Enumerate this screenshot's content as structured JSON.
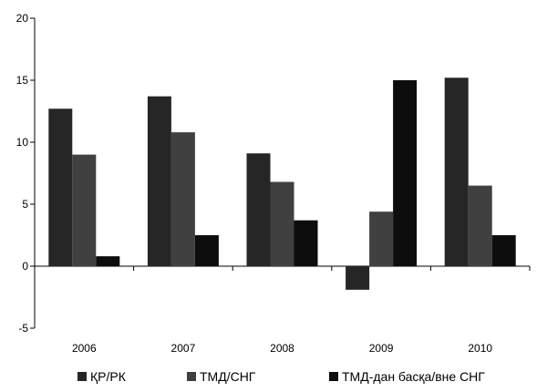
{
  "chart_data": {
    "type": "bar",
    "categories": [
      "2006",
      "2007",
      "2008",
      "2009",
      "2010"
    ],
    "series": [
      {
        "name": "ҚР/РК",
        "color": "#262626",
        "values": [
          12.7,
          13.7,
          9.1,
          -1.9,
          15.2
        ]
      },
      {
        "name": "ТМД/СНГ",
        "color": "#404040",
        "values": [
          9.0,
          10.8,
          6.8,
          4.4,
          6.5
        ]
      },
      {
        "name": "ТМД-дан басқа/вне СНГ",
        "color": "#0d0d0d",
        "values": [
          0.8,
          2.5,
          3.7,
          15.0,
          2.5
        ]
      }
    ],
    "ylim": [
      -5,
      20
    ],
    "yticks": [
      "-5",
      "0",
      "5",
      "10",
      "15",
      "20"
    ],
    "legend_position": "bottom",
    "grid": false
  }
}
